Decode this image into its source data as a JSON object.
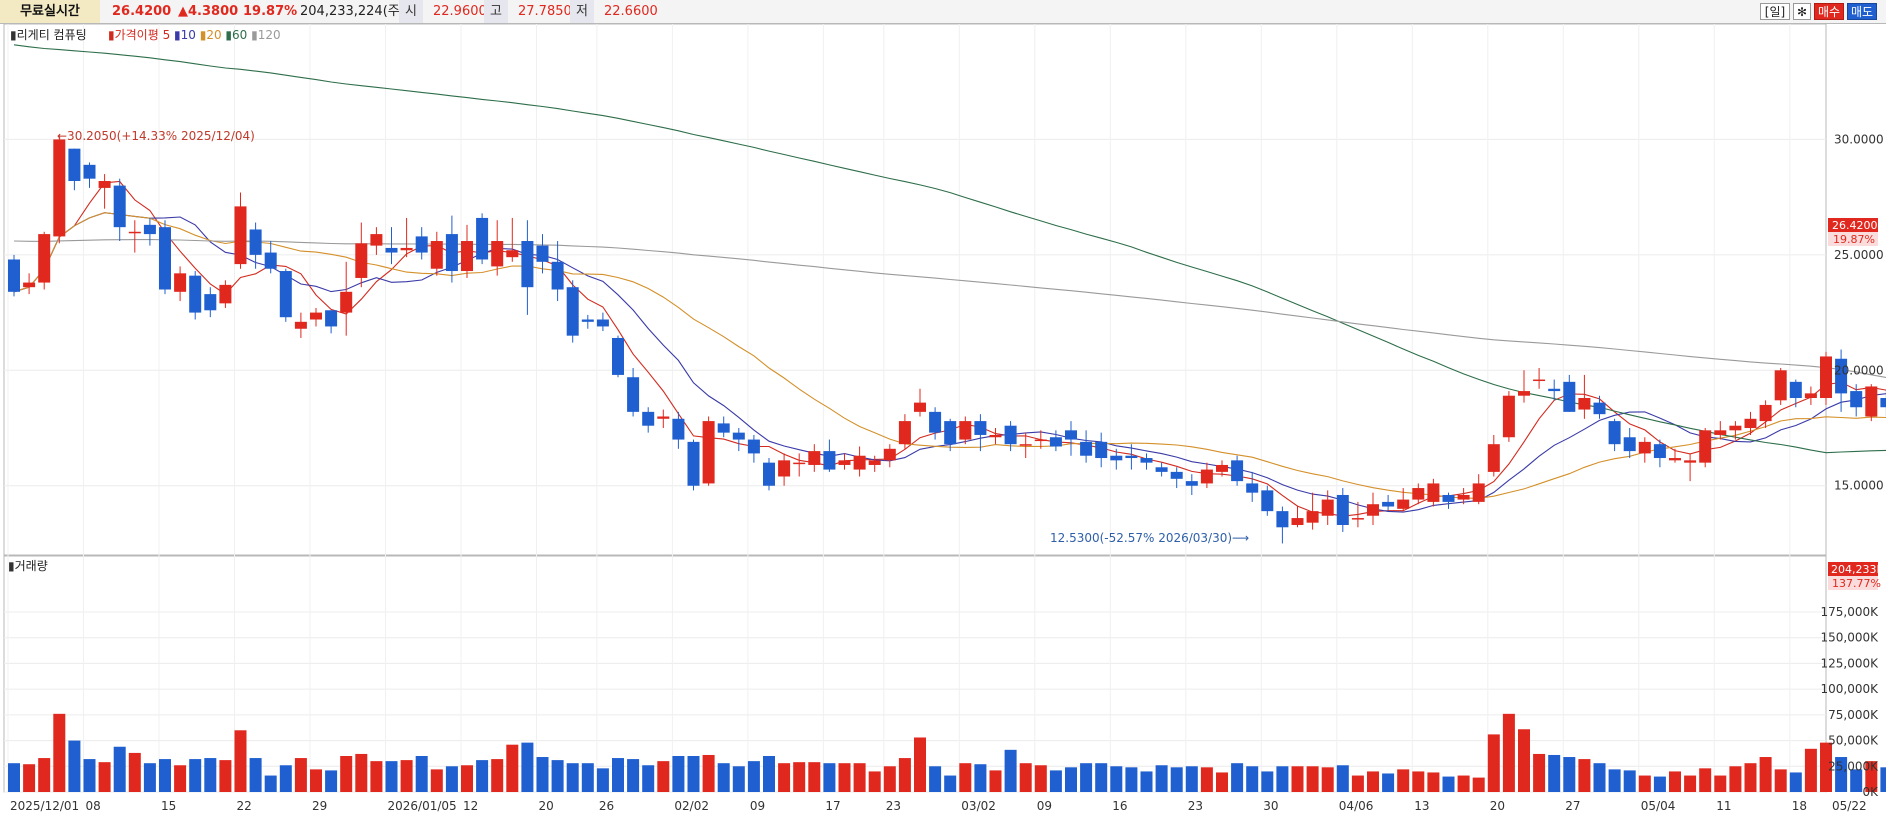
{
  "topbar": {
    "title": "무료실시간",
    "price": "26.4200",
    "change": "▲4.3800",
    "change_pct": "19.87%",
    "volume": "204,233,224(주)",
    "open_label": "시",
    "open": "22.9600",
    "high_label": "고",
    "high": "27.7850",
    "low_label": "저",
    "low": "22.6600",
    "period_btn": "[일]",
    "settings_icon": "gear-icon",
    "buy_btn": "매수",
    "sell_btn": "매도"
  },
  "legend": {
    "name": "리게티 컴퓨팅",
    "price_ma_label": "가격이평",
    "periods": [
      "5",
      "10",
      "20",
      "60",
      "120"
    ],
    "colors": [
      "#d22a1e",
      "#3a3aa8",
      "#d4902a",
      "#2e6e4a",
      "#9a9a9a"
    ],
    "volume_title": "거래량"
  },
  "annotations": {
    "high": "←30.2050(+14.33% 2025/12/04)",
    "low": "12.5300(-52.57% 2026/03/30)⟶"
  },
  "price_axis": {
    "ticks": [
      "30.0000",
      "25.0000",
      "20.0000",
      "15.0000"
    ],
    "current": "26.4200",
    "current_pct": "19.87%"
  },
  "volume_axis": {
    "ticks": [
      "175,000K",
      "150,000K",
      "125,000K",
      "100,000K",
      "75,000K",
      "50,000K",
      "25,000K",
      "0K"
    ],
    "current": "204,233K",
    "current_pct": "137.77%"
  },
  "x_axis": {
    "labels": [
      "2025/12/01",
      "08",
      "15",
      "22",
      "29",
      "2026/01/05",
      "12",
      "20",
      "26",
      "02/02",
      "09",
      "17",
      "23",
      "03/02",
      "09",
      "16",
      "23",
      "30",
      "04/06",
      "13",
      "20",
      "27",
      "05/04",
      "11",
      "18",
      "05/22"
    ]
  },
  "chart_data": {
    "type": "candlestick",
    "title": "리게티 컴퓨팅",
    "up_color": "#e0281e",
    "down_color": "#1f5fcf",
    "price_range": [
      12.0,
      35.0
    ],
    "volume_range": [
      0,
      210000
    ],
    "volume_unit": "K",
    "candles": [
      [
        24.8,
        23.4,
        25.0,
        23.2,
        28000
      ],
      [
        23.6,
        23.8,
        24.2,
        23.3,
        27000
      ],
      [
        23.8,
        25.9,
        26.0,
        23.5,
        33000
      ],
      [
        25.8,
        30.0,
        30.2,
        25.5,
        76000
      ],
      [
        29.6,
        28.2,
        29.6,
        27.8,
        50000
      ],
      [
        28.9,
        28.3,
        29.0,
        27.9,
        32000
      ],
      [
        27.9,
        28.2,
        28.5,
        27.0,
        29000
      ],
      [
        28.0,
        26.2,
        28.3,
        25.6,
        44000
      ],
      [
        26.0,
        26.0,
        26.5,
        25.1,
        38000
      ],
      [
        26.3,
        25.9,
        26.6,
        25.4,
        28000
      ],
      [
        26.2,
        23.5,
        26.5,
        23.3,
        32000
      ],
      [
        23.4,
        24.2,
        24.5,
        23.0,
        26000
      ],
      [
        24.1,
        22.5,
        24.3,
        22.2,
        32000
      ],
      [
        23.3,
        22.6,
        23.6,
        22.3,
        33000
      ],
      [
        22.9,
        23.7,
        23.9,
        22.7,
        31000
      ],
      [
        24.6,
        27.1,
        27.7,
        24.4,
        60000
      ],
      [
        26.1,
        25.0,
        26.4,
        24.4,
        33000
      ],
      [
        25.1,
        24.4,
        25.6,
        24.2,
        16000
      ],
      [
        24.3,
        22.3,
        24.4,
        22.1,
        26000
      ],
      [
        21.8,
        22.1,
        22.5,
        21.4,
        33000
      ],
      [
        22.2,
        22.5,
        22.7,
        21.9,
        22000
      ],
      [
        22.6,
        21.9,
        22.6,
        21.6,
        21000
      ],
      [
        22.5,
        23.4,
        24.7,
        21.5,
        35000
      ],
      [
        24.0,
        25.5,
        26.4,
        23.6,
        37000
      ],
      [
        25.4,
        25.9,
        26.2,
        25.0,
        30000
      ],
      [
        25.3,
        25.1,
        26.2,
        24.6,
        30000
      ],
      [
        25.2,
        25.3,
        26.6,
        24.9,
        31000
      ],
      [
        25.8,
        25.1,
        26.2,
        24.8,
        35000
      ],
      [
        24.4,
        25.6,
        26.0,
        24.1,
        22000
      ],
      [
        25.9,
        24.3,
        26.7,
        23.8,
        25000
      ],
      [
        24.3,
        25.6,
        26.3,
        24.0,
        26000
      ],
      [
        26.6,
        24.8,
        26.8,
        24.6,
        31000
      ],
      [
        24.5,
        25.6,
        26.5,
        24.1,
        32000
      ],
      [
        24.9,
        25.2,
        26.6,
        24.7,
        46000
      ],
      [
        25.6,
        23.6,
        26.5,
        22.4,
        48000
      ],
      [
        25.4,
        24.7,
        25.9,
        24.2,
        34000
      ],
      [
        24.7,
        23.5,
        25.6,
        23.0,
        31000
      ],
      [
        23.6,
        21.5,
        23.9,
        21.2,
        28000
      ],
      [
        22.2,
        22.1,
        22.4,
        21.8,
        28000
      ],
      [
        22.2,
        21.9,
        22.5,
        21.7,
        23000
      ],
      [
        21.4,
        19.8,
        21.5,
        19.7,
        33000
      ],
      [
        19.7,
        18.2,
        20.1,
        18.0,
        32000
      ],
      [
        18.2,
        17.6,
        18.4,
        17.3,
        26000
      ],
      [
        17.9,
        18.0,
        18.3,
        17.5,
        30000
      ],
      [
        17.9,
        17.0,
        18.2,
        16.6,
        35000
      ],
      [
        16.9,
        15.0,
        17.0,
        14.8,
        35000
      ],
      [
        15.1,
        17.8,
        18.0,
        15.0,
        36000
      ],
      [
        17.7,
        17.3,
        18.0,
        17.1,
        28000
      ],
      [
        17.3,
        17.0,
        17.5,
        16.5,
        25000
      ],
      [
        17.0,
        16.4,
        17.2,
        16.0,
        30000
      ],
      [
        16.0,
        15.0,
        16.2,
        14.8,
        35000
      ],
      [
        15.4,
        16.1,
        16.4,
        15.0,
        28000
      ],
      [
        16.0,
        16.0,
        16.4,
        15.4,
        29000
      ],
      [
        15.9,
        16.5,
        16.8,
        15.6,
        29000
      ],
      [
        16.5,
        15.7,
        17.0,
        15.6,
        28000
      ],
      [
        15.9,
        16.1,
        16.4,
        15.7,
        28000
      ],
      [
        15.7,
        16.3,
        16.7,
        15.4,
        28000
      ],
      [
        15.9,
        16.1,
        16.3,
        15.6,
        20000
      ],
      [
        16.1,
        16.6,
        16.8,
        15.8,
        25000
      ],
      [
        16.8,
        17.8,
        18.1,
        16.6,
        33000
      ],
      [
        18.2,
        18.6,
        19.2,
        18.0,
        53000
      ],
      [
        18.2,
        17.3,
        18.4,
        17.0,
        25000
      ],
      [
        17.8,
        16.8,
        17.9,
        16.5,
        16000
      ],
      [
        17.0,
        17.8,
        18.0,
        16.8,
        28000
      ],
      [
        17.8,
        17.2,
        18.1,
        16.5,
        27000
      ],
      [
        17.1,
        17.2,
        17.5,
        16.8,
        21000
      ],
      [
        17.6,
        16.8,
        17.8,
        16.5,
        41000
      ],
      [
        16.8,
        16.8,
        17.3,
        16.2,
        28000
      ],
      [
        17.0,
        17.0,
        17.4,
        16.6,
        26000
      ],
      [
        17.1,
        16.7,
        17.4,
        16.5,
        21000
      ],
      [
        17.4,
        17.0,
        17.8,
        16.3,
        24000
      ],
      [
        16.9,
        16.3,
        17.4,
        16.0,
        28000
      ],
      [
        16.9,
        16.2,
        17.3,
        15.8,
        28000
      ],
      [
        16.3,
        16.1,
        16.6,
        15.7,
        25000
      ],
      [
        16.3,
        16.2,
        16.8,
        15.7,
        24000
      ],
      [
        16.2,
        16.0,
        16.4,
        15.7,
        20000
      ],
      [
        15.8,
        15.6,
        16.0,
        15.4,
        26000
      ],
      [
        15.6,
        15.3,
        15.8,
        14.9,
        24000
      ],
      [
        15.2,
        15.0,
        15.5,
        14.6,
        25000
      ],
      [
        15.1,
        15.7,
        16.0,
        14.9,
        24000
      ],
      [
        15.6,
        15.9,
        16.1,
        15.4,
        19000
      ],
      [
        16.1,
        15.2,
        16.3,
        15.0,
        28000
      ],
      [
        15.1,
        14.7,
        15.6,
        14.3,
        25000
      ],
      [
        14.8,
        13.9,
        15.0,
        13.7,
        20000
      ],
      [
        13.9,
        13.2,
        14.1,
        12.5,
        25000
      ],
      [
        13.3,
        13.6,
        14.1,
        13.2,
        25000
      ],
      [
        13.4,
        13.9,
        14.7,
        13.1,
        25000
      ],
      [
        13.7,
        14.4,
        14.8,
        13.3,
        24000
      ],
      [
        14.6,
        13.3,
        14.9,
        13.0,
        26000
      ],
      [
        13.6,
        13.6,
        14.3,
        13.2,
        16000
      ],
      [
        13.7,
        14.2,
        14.7,
        13.3,
        20000
      ],
      [
        14.3,
        14.1,
        14.6,
        13.9,
        18000
      ],
      [
        14.0,
        14.4,
        14.9,
        13.9,
        22000
      ],
      [
        14.4,
        14.9,
        15.1,
        14.2,
        20000
      ],
      [
        14.3,
        15.1,
        15.3,
        14.1,
        19000
      ],
      [
        14.6,
        14.3,
        14.7,
        14.0,
        15000
      ],
      [
        14.4,
        14.6,
        14.9,
        14.2,
        16000
      ],
      [
        14.3,
        15.1,
        15.5,
        14.2,
        14000
      ],
      [
        15.6,
        16.8,
        17.2,
        15.4,
        56000
      ],
      [
        17.1,
        18.9,
        19.1,
        16.9,
        76000
      ],
      [
        18.9,
        19.1,
        20.0,
        18.6,
        61000
      ],
      [
        19.6,
        19.6,
        20.1,
        19.2,
        37000
      ],
      [
        19.2,
        19.1,
        19.6,
        18.7,
        36000
      ],
      [
        19.5,
        18.2,
        19.8,
        18.2,
        34000
      ],
      [
        18.3,
        18.8,
        19.8,
        17.9,
        32000
      ],
      [
        18.6,
        18.1,
        18.9,
        17.9,
        28000
      ],
      [
        17.8,
        16.8,
        17.9,
        16.5,
        22000
      ],
      [
        17.1,
        16.5,
        17.5,
        16.2,
        21000
      ],
      [
        16.4,
        16.9,
        17.1,
        16.0,
        16000
      ],
      [
        16.8,
        16.2,
        17.0,
        15.8,
        15000
      ],
      [
        16.1,
        16.2,
        16.6,
        16.0,
        20000
      ],
      [
        16.0,
        16.1,
        16.4,
        15.2,
        16000
      ],
      [
        16.0,
        17.4,
        17.5,
        15.8,
        23000
      ],
      [
        17.2,
        17.4,
        17.8,
        17.0,
        16000
      ],
      [
        17.4,
        17.6,
        17.8,
        17.0,
        25000
      ],
      [
        17.5,
        17.9,
        18.2,
        17.2,
        28000
      ],
      [
        17.8,
        18.5,
        18.7,
        17.5,
        34000
      ],
      [
        18.7,
        20.0,
        20.1,
        18.5,
        22000
      ],
      [
        19.5,
        18.8,
        19.6,
        18.4,
        19000
      ],
      [
        18.8,
        19.0,
        19.3,
        18.5,
        42000
      ],
      [
        18.8,
        20.6,
        20.8,
        18.5,
        48000
      ],
      [
        20.5,
        19.0,
        20.9,
        18.2,
        34000
      ],
      [
        19.1,
        18.4,
        19.4,
        18.0,
        22000
      ],
      [
        18.0,
        19.3,
        19.4,
        17.8,
        30000
      ],
      [
        18.8,
        18.4,
        19.2,
        18.0,
        24000
      ],
      [
        18.4,
        17.8,
        18.7,
        17.6,
        28000
      ],
      [
        17.8,
        16.6,
        18.0,
        16.3,
        20000
      ],
      [
        16.2,
        15.9,
        16.4,
        15.5,
        25000
      ],
      [
        16.0,
        16.7,
        17.1,
        15.8,
        24000
      ],
      [
        18.6,
        22.0,
        22.1,
        18.5,
        145000
      ],
      [
        22.9,
        26.4,
        27.8,
        22.7,
        204233
      ]
    ]
  }
}
